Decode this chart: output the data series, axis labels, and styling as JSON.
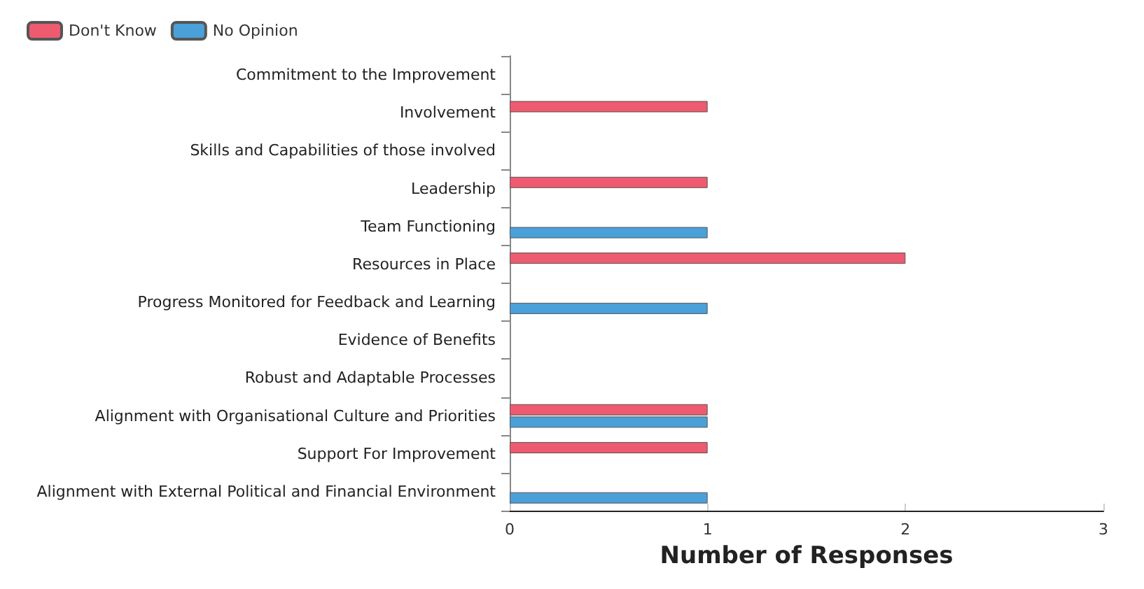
{
  "chart_data": {
    "type": "bar",
    "orientation": "horizontal",
    "xlabel": "Number of Responses",
    "categories": [
      "Commitment to the Improvement",
      "Involvement",
      "Skills and Capabilities of those involved",
      "Leadership",
      "Team Functioning",
      "Resources in Place",
      "Progress Monitored for Feedback and Learning",
      "Evidence of Benefits",
      "Robust and Adaptable Processes",
      "Alignment with Organisational Culture and Priorities",
      "Support For Improvement",
      "Alignment with External Political and Financial Environment"
    ],
    "series": [
      {
        "name": "Don't Know",
        "color": "#ee5a6f",
        "values": [
          null,
          1,
          null,
          1,
          null,
          2,
          null,
          null,
          null,
          1,
          1,
          null
        ]
      },
      {
        "name": "No Opinion",
        "color": "#4aa0d8",
        "values": [
          null,
          null,
          null,
          null,
          1,
          null,
          1,
          null,
          null,
          1,
          null,
          1
        ]
      }
    ],
    "xlim": [
      0,
      3
    ],
    "xticks": [
      0,
      1,
      2,
      3
    ],
    "grid": false,
    "legend": "top left"
  }
}
